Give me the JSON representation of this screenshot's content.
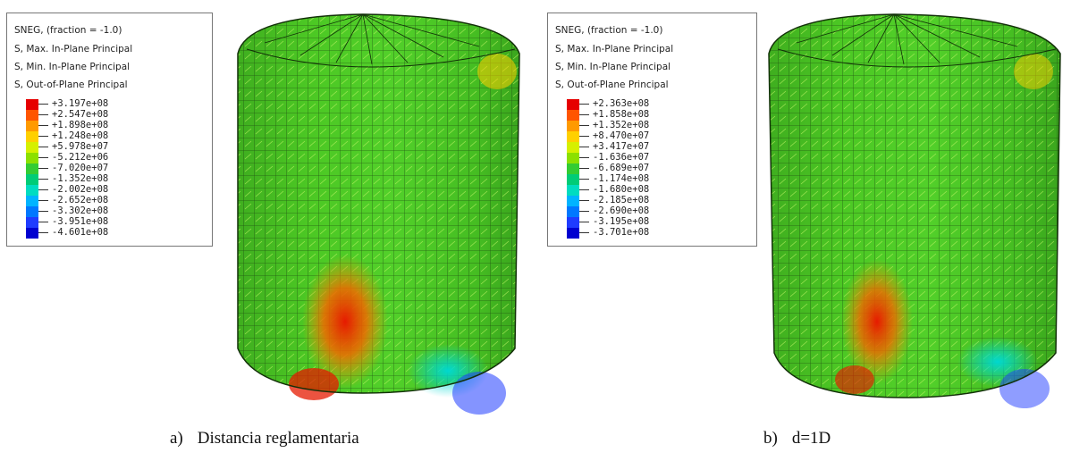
{
  "panels": [
    {
      "legend": {
        "line1": "SNEG, (fraction = -1.0)",
        "line2": "S, Max. In-Plane Principal",
        "line3": "S, Min. In-Plane Principal",
        "line4": "S, Out-of-Plane Principal",
        "values": [
          "+3.197e+08",
          "+2.547e+08",
          "+1.898e+08",
          "+1.248e+08",
          "+5.978e+07",
          "-5.212e+06",
          "-7.020e+07",
          "-1.352e+08",
          "-2.002e+08",
          "-2.652e+08",
          "-3.302e+08",
          "-3.951e+08",
          "-4.601e+08"
        ]
      },
      "caption_label": "a)",
      "caption_text": "Distancia reglamentaria"
    },
    {
      "legend": {
        "line1": "SNEG, (fraction = -1.0)",
        "line2": "S, Max. In-Plane Principal",
        "line3": "S, Min. In-Plane Principal",
        "line4": "S, Out-of-Plane Principal",
        "values": [
          "+2.363e+08",
          "+1.858e+08",
          "+1.352e+08",
          "+8.470e+07",
          "+3.417e+07",
          "-1.636e+07",
          "-6.689e+07",
          "-1.174e+08",
          "-1.680e+08",
          "-2.185e+08",
          "-2.690e+08",
          "-3.195e+08",
          "-3.701e+08"
        ]
      },
      "caption_label": "b)",
      "caption_text": "d=1D"
    }
  ],
  "colorbar": [
    "#e60000",
    "#ff5500",
    "#ff9a00",
    "#ffd000",
    "#d6f000",
    "#8ce000",
    "#33cc33",
    "#00cc77",
    "#00dcc0",
    "#00b4ff",
    "#0078ff",
    "#1f3cff",
    "#0000d0"
  ]
}
